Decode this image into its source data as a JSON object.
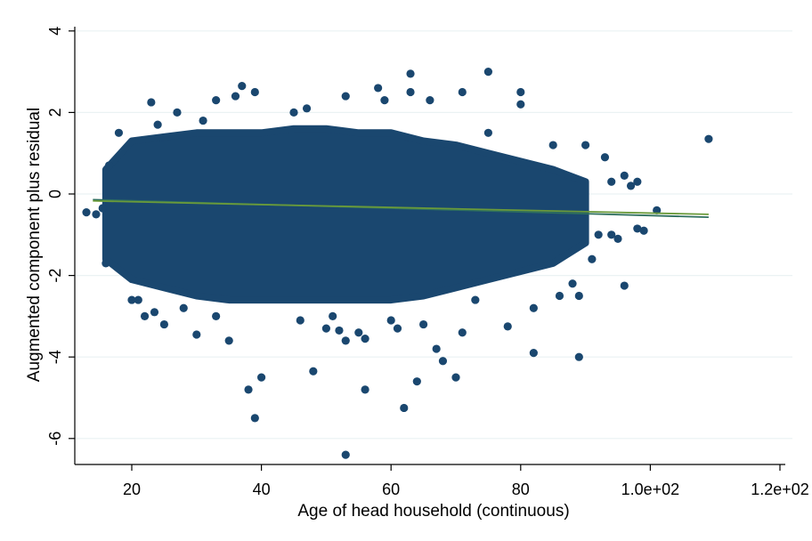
{
  "chart_data": {
    "type": "scatter",
    "title": "",
    "xlabel": "Age of head household (continuous)",
    "ylabel": "Augmented component plus residual",
    "xlim": [
      12,
      122
    ],
    "ylim": [
      -6.5,
      4.2
    ],
    "x_ticks": [
      {
        "value": 20,
        "label": "20"
      },
      {
        "value": 40,
        "label": "40"
      },
      {
        "value": 60,
        "label": "60"
      },
      {
        "value": 80,
        "label": "80"
      },
      {
        "value": 100,
        "label": "1.0e+02"
      },
      {
        "value": 120,
        "label": "1.2e+02"
      }
    ],
    "y_ticks": [
      {
        "value": -6,
        "label": "-6"
      },
      {
        "value": -4,
        "label": "-4"
      },
      {
        "value": -2,
        "label": "-2"
      },
      {
        "value": 0,
        "label": "0"
      },
      {
        "value": 2,
        "label": "2"
      },
      {
        "value": 4,
        "label": "4"
      }
    ],
    "grid": true,
    "colors": {
      "points": "#1a476f",
      "line_linear": "#2e6f5e",
      "line_smooth": "#6a9a3a",
      "grid": "#eaf2f3"
    },
    "cloud_envelope": {
      "x": [
        16,
        20,
        25,
        30,
        35,
        40,
        45,
        50,
        55,
        60,
        65,
        70,
        75,
        80,
        85,
        90
      ],
      "y_upper": [
        0.6,
        1.3,
        1.4,
        1.5,
        1.5,
        1.5,
        1.6,
        1.6,
        1.5,
        1.5,
        1.3,
        1.2,
        1.0,
        0.8,
        0.6,
        0.3
      ],
      "y_lower": [
        -1.6,
        -2.1,
        -2.3,
        -2.5,
        -2.6,
        -2.6,
        -2.6,
        -2.6,
        -2.6,
        -2.6,
        -2.5,
        -2.3,
        -2.1,
        -1.9,
        -1.7,
        -1.2
      ]
    },
    "series": [
      {
        "points": [
          [
            13,
            -0.45
          ],
          [
            14.5,
            -0.5
          ],
          [
            15.5,
            -0.35
          ],
          [
            16,
            -1.7
          ],
          [
            16.5,
            0.7
          ],
          [
            18,
            1.5
          ],
          [
            20,
            -2.6
          ],
          [
            21,
            -2.6
          ],
          [
            22,
            -3.0
          ],
          [
            23,
            2.25
          ],
          [
            23.5,
            -2.9
          ],
          [
            25,
            -3.2
          ],
          [
            24,
            1.7
          ],
          [
            27,
            2.0
          ],
          [
            28,
            -2.8
          ],
          [
            30,
            -3.45
          ],
          [
            31,
            1.8
          ],
          [
            33,
            2.3
          ],
          [
            33,
            -3.0
          ],
          [
            35,
            -3.6
          ],
          [
            36,
            2.4
          ],
          [
            37,
            2.65
          ],
          [
            38,
            -4.8
          ],
          [
            39,
            -5.5
          ],
          [
            40,
            -4.5
          ],
          [
            39,
            2.5
          ],
          [
            45,
            2.0
          ],
          [
            46,
            -3.1
          ],
          [
            47,
            2.1
          ],
          [
            48,
            -4.35
          ],
          [
            50,
            -3.3
          ],
          [
            51,
            -3.0
          ],
          [
            52,
            -3.35
          ],
          [
            53,
            -3.6
          ],
          [
            53,
            -6.4
          ],
          [
            53,
            2.4
          ],
          [
            55,
            -3.4
          ],
          [
            56,
            -3.55
          ],
          [
            56,
            -4.8
          ],
          [
            58,
            2.6
          ],
          [
            59,
            2.3
          ],
          [
            60,
            -3.1
          ],
          [
            61,
            -3.3
          ],
          [
            62,
            -5.25
          ],
          [
            63,
            2.95
          ],
          [
            63,
            2.5
          ],
          [
            64,
            -4.6
          ],
          [
            65,
            -3.2
          ],
          [
            66,
            2.3
          ],
          [
            67,
            -3.8
          ],
          [
            68,
            -4.1
          ],
          [
            70,
            -4.5
          ],
          [
            71,
            -3.4
          ],
          [
            71,
            2.5
          ],
          [
            73,
            -2.6
          ],
          [
            75,
            3.0
          ],
          [
            75,
            1.5
          ],
          [
            78,
            -3.25
          ],
          [
            80,
            2.5
          ],
          [
            80,
            2.2
          ],
          [
            82,
            -2.8
          ],
          [
            82,
            -3.9
          ],
          [
            85,
            1.2
          ],
          [
            86,
            -2.5
          ],
          [
            88,
            -2.2
          ],
          [
            89,
            -2.5
          ],
          [
            89,
            -4.0
          ],
          [
            90,
            1.2
          ],
          [
            91,
            -1.6
          ],
          [
            92,
            -1.0
          ],
          [
            93,
            0.9
          ],
          [
            94,
            -1.0
          ],
          [
            94,
            0.3
          ],
          [
            95,
            -1.1
          ],
          [
            96,
            -2.25
          ],
          [
            96,
            0.45
          ],
          [
            97,
            0.2
          ],
          [
            98,
            -0.85
          ],
          [
            99,
            -0.9
          ],
          [
            98,
            0.3
          ],
          [
            101,
            -0.4
          ],
          [
            109,
            1.35
          ]
        ]
      }
    ],
    "fit_lines": [
      {
        "kind": "linear",
        "x": [
          14,
          109
        ],
        "y": [
          -0.14,
          -0.57
        ]
      },
      {
        "kind": "smooth",
        "x": [
          14,
          109
        ],
        "y": [
          -0.17,
          -0.5
        ]
      }
    ]
  }
}
